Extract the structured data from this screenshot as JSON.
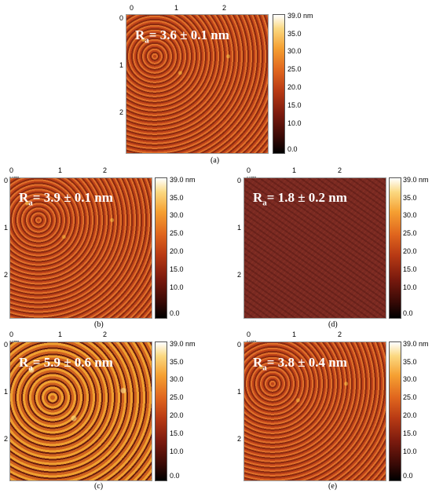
{
  "panels": {
    "a": {
      "caption": "(a)",
      "ra": "= 3.6 ± 0.1 nm"
    },
    "b": {
      "caption": "(b)",
      "ra": "= 3.9 ± 0.1 nm"
    },
    "c": {
      "caption": "(c)",
      "ra": "= 5.9 ± 0.6 nm"
    },
    "d": {
      "caption": "(d)",
      "ra": "= 1.8 ± 0.2 nm"
    },
    "e": {
      "caption": "(e)",
      "ra": "= 3.8 ± 0.4 nm"
    }
  },
  "ra_symbol": "R",
  "ra_subscript": "a",
  "x_ticks": [
    "0 µm",
    "1",
    "2"
  ],
  "y_ticks": [
    "0",
    "1",
    "2"
  ],
  "colorbar_ticks": [
    "39.0 nm",
    "35.0",
    "30.0",
    "25.0",
    "20.0",
    "15.0",
    "10.0",
    "0.0"
  ]
}
